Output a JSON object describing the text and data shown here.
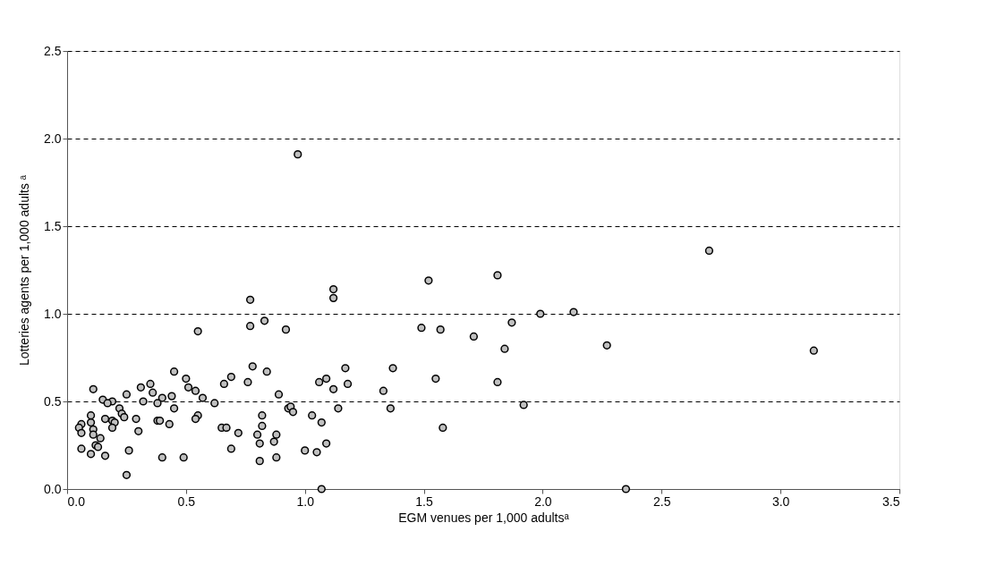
{
  "chart_data": {
    "type": "scatter",
    "xlabel": "EGM venues per 1,000 adultsᵃ",
    "ylabel": "Lotteries agents per 1,000 adults ᵃ",
    "x": [
      0.55,
      0.77,
      0.45,
      0.5,
      0.78,
      0.69,
      0.66,
      0.76,
      0.11,
      0.31,
      0.35,
      0.36,
      0.51,
      0.54,
      0.57,
      0.62,
      0.15,
      0.19,
      0.17,
      0.25,
      0.32,
      0.4,
      0.44,
      0.38,
      0.45,
      0.22,
      0.23,
      0.1,
      0.24,
      0.16,
      0.19,
      0.2,
      0.29,
      0.38,
      0.39,
      0.43,
      0.55,
      0.54,
      0.1,
      0.06,
      0.05,
      0.19,
      0.11,
      0.06,
      0.11,
      0.3,
      0.14,
      0.65,
      0.67,
      0.72,
      0.8,
      0.06,
      0.1,
      0.12,
      0.13,
      0.16,
      0.26,
      0.4,
      0.49,
      0.69,
      0.25,
      0.82,
      0.82,
      0.81,
      0.81,
      1.12,
      1.12,
      1.52,
      0.77,
      0.83,
      0.92,
      1.49,
      1.57,
      1.71,
      0.84,
      1.17,
      1.37,
      1.09,
      1.06,
      1.18,
      1.12,
      1.33,
      1.55,
      0.89,
      1.14,
      1.36,
      0.93,
      0.94,
      0.95,
      1.03,
      1.07,
      1.58,
      0.88,
      0.87,
      1.09,
      1.0,
      1.05,
      0.88,
      1.07,
      2.7,
      1.81,
      1.99,
      2.13,
      1.87,
      1.84,
      2.27,
      3.14,
      1.81,
      1.92,
      2.35,
      0.97
    ],
    "series": [
      {
        "color": "#c0c0c0",
        "values": [
          0.9,
          0.93,
          0.67,
          0.63,
          0.7,
          0.64,
          0.6,
          0.61,
          0.57,
          0.58,
          0.6,
          0.55,
          0.58,
          0.56,
          0.52,
          0.49,
          0.51,
          0.5,
          0.49,
          0.54,
          0.5,
          0.52,
          0.53,
          0.49,
          0.46,
          0.46,
          0.43,
          0.42,
          0.41,
          0.4,
          0.39,
          0.38,
          0.4,
          0.39,
          0.39,
          0.37,
          0.42,
          0.4,
          0.38,
          0.37,
          0.35,
          0.35,
          0.34,
          0.32,
          0.31,
          0.33,
          0.29,
          0.35,
          0.35,
          0.32,
          0.31,
          0.23,
          0.2,
          0.25,
          0.24,
          0.19,
          0.22,
          0.18,
          0.18,
          0.23,
          0.08,
          0.42,
          0.36,
          0.26,
          0.16,
          1.14,
          1.09,
          1.19,
          1.08,
          0.96,
          0.91,
          0.92,
          0.91,
          0.87,
          0.67,
          0.69,
          0.69,
          0.63,
          0.61,
          0.6,
          0.57,
          0.56,
          0.63,
          0.54,
          0.46,
          0.46,
          0.46,
          0.47,
          0.44,
          0.42,
          0.38,
          0.35,
          0.31,
          0.27,
          0.26,
          0.22,
          0.21,
          0.18,
          0.0,
          1.36,
          1.22,
          1.0,
          1.01,
          0.95,
          0.8,
          0.82,
          0.79,
          0.61,
          0.48,
          0.0,
          1.91
        ]
      }
    ],
    "xlim": [
      0,
      3.5
    ],
    "xticks": [
      {
        "value": 0,
        "label": "0.0"
      },
      0.5,
      {
        "value": 1,
        "label": "1.0"
      },
      1.5,
      {
        "value": 2,
        "label": "2.0"
      },
      2.5,
      {
        "value": 3,
        "label": "3.0"
      },
      3.5
    ],
    "ylim": [
      0,
      2.5
    ],
    "yticks": [
      {
        "value": 0,
        "label": "0.0"
      },
      0.5,
      {
        "value": 1,
        "label": "1.0"
      },
      1.5,
      {
        "value": 2,
        "label": "2.0"
      },
      2.5
    ],
    "grid": "y",
    "marker": "circle"
  }
}
